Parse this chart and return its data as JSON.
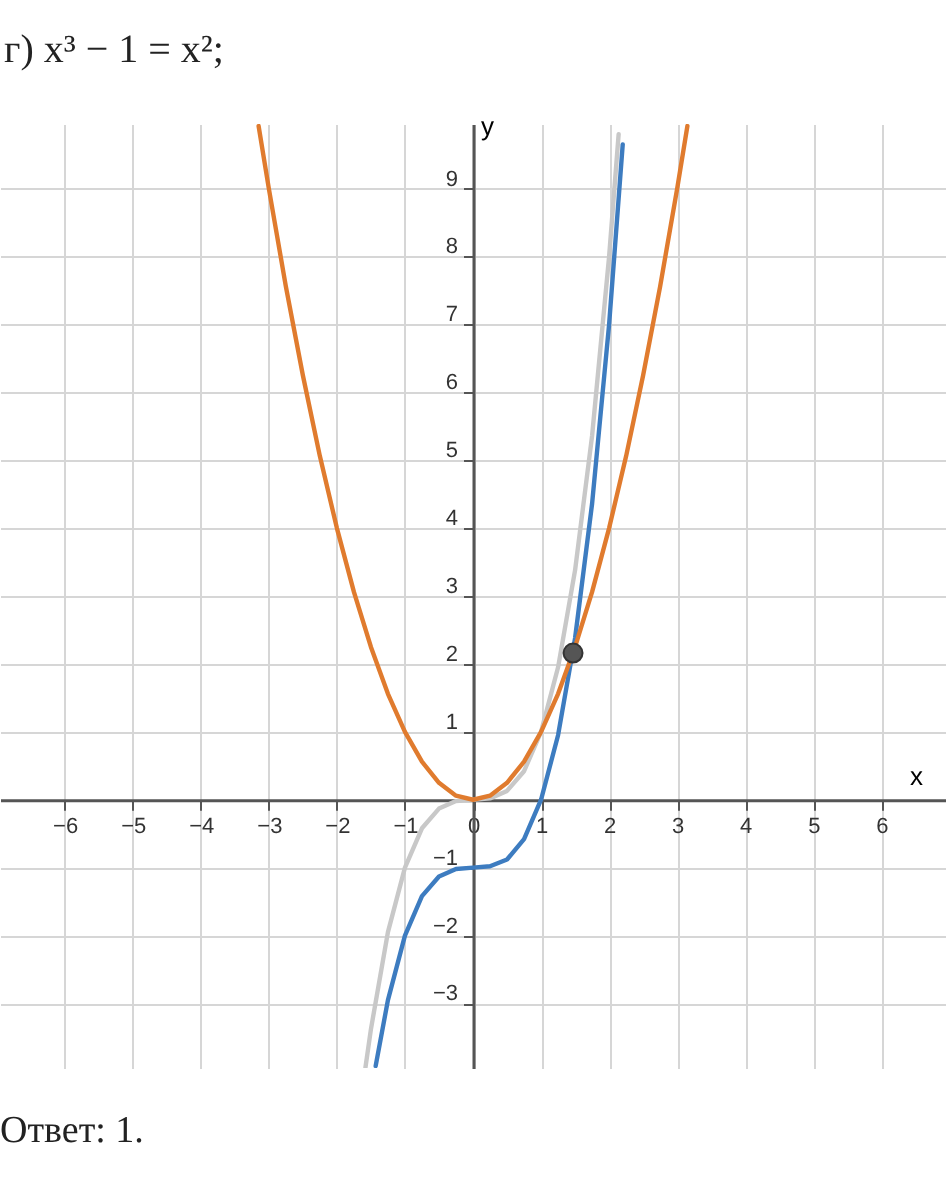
{
  "chart_data": {
    "type": "line",
    "title": "г) x³ − 1 = x²;",
    "xlabel": "x",
    "ylabel": "y",
    "annotations": [
      "Ответ: 1."
    ],
    "xlim": [
      -6.95,
      6.95
    ],
    "ylim": [
      -3.95,
      9.95
    ],
    "xticks": [
      -6,
      -5,
      -4,
      -3,
      -2,
      -1,
      0,
      1,
      2,
      3,
      4,
      5,
      6
    ],
    "yticks": [
      -3,
      -2,
      -1,
      1,
      2,
      3,
      4,
      5,
      6,
      7,
      8,
      9
    ],
    "grid": true,
    "series": [
      {
        "color": "#c8c8c8",
        "x": [
          -1.58,
          -1.5,
          -1.25,
          -1,
          -0.75,
          -0.5,
          -0.25,
          0,
          0.25,
          0.5,
          0.75,
          1,
          1.25,
          1.5,
          1.75,
          2,
          2.14
        ],
        "values": [
          -3.94,
          -3.38,
          -1.95,
          -1,
          -0.42,
          -0.13,
          -0.02,
          0,
          0.02,
          0.13,
          0.42,
          1,
          1.95,
          3.38,
          5.36,
          8,
          9.8
        ]
      },
      {
        "color": "#3d7cc0",
        "x": [
          -1.43,
          -1.25,
          -1,
          -0.75,
          -0.5,
          -0.25,
          0,
          0.25,
          0.5,
          0.75,
          1,
          1.25,
          1.5,
          1.75,
          2,
          2.2
        ],
        "values": [
          -3.92,
          -2.95,
          -2,
          -1.42,
          -1.13,
          -1.02,
          -1,
          -0.98,
          -0.88,
          -0.58,
          0,
          0.95,
          2.38,
          4.36,
          7,
          9.65
        ]
      },
      {
        "color": "#e07b2e",
        "x": [
          -3.15,
          -3,
          -2.75,
          -2.5,
          -2.25,
          -2,
          -1.75,
          -1.5,
          -1.25,
          -1,
          -0.75,
          -0.5,
          -0.25,
          0,
          0.25,
          0.5,
          0.75,
          1,
          1.25,
          1.5,
          1.75,
          2,
          2.25,
          2.5,
          2.75,
          3,
          3.15
        ],
        "values": [
          9.92,
          9,
          7.56,
          6.25,
          5.06,
          4,
          3.06,
          2.25,
          1.56,
          1,
          0.56,
          0.25,
          0.06,
          0,
          0.06,
          0.25,
          0.56,
          1,
          1.56,
          2.25,
          3.06,
          4,
          5.06,
          6.25,
          7.56,
          9,
          9.92
        ]
      },
      {
        "type": "scatter",
        "color": "#555555",
        "marker": "circle",
        "x": [
          1.47
        ],
        "values": [
          2.16
        ]
      }
    ]
  }
}
